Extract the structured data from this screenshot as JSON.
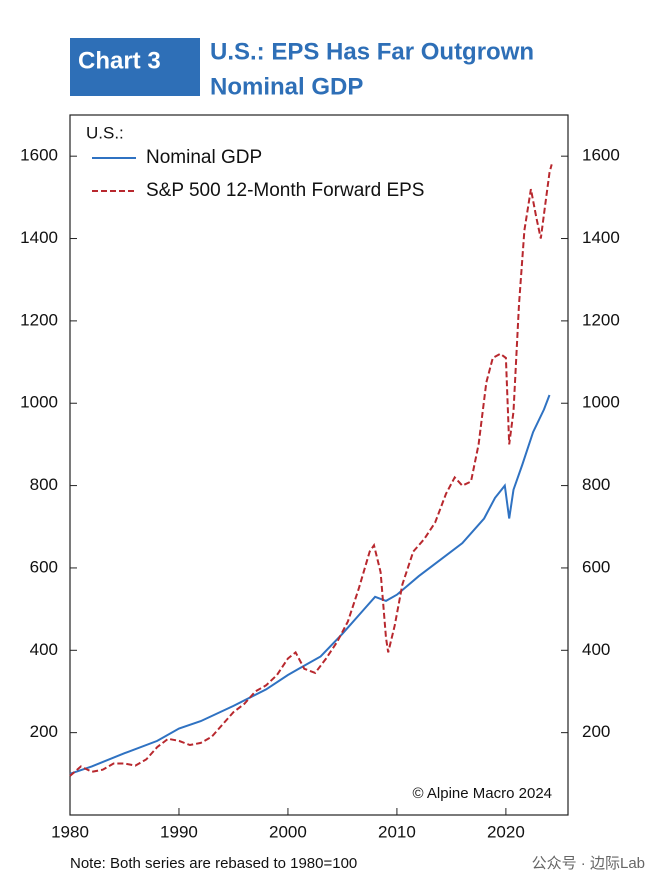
{
  "chart_data": {
    "type": "line",
    "label": "Chart 3",
    "title": [
      "U.S.: EPS Has Far Outgrown",
      "Nominal GDP"
    ],
    "legend_title": "U.S.:",
    "annotation": "© Alpine Macro 2024",
    "note": "Note: Both series are rebased to 1980=100",
    "watermark": "公众号 · 边际Lab",
    "xlim": [
      1980,
      2025.7
    ],
    "xticks": [
      1980,
      1990,
      2000,
      2010,
      2020
    ],
    "ylim": [
      0,
      1700
    ],
    "yticks": [
      200,
      400,
      600,
      800,
      1000,
      1200,
      1400,
      1600
    ],
    "y2lim": [
      0,
      1700
    ],
    "y2ticks": [
      200,
      400,
      600,
      800,
      1000,
      1200,
      1400,
      1600
    ],
    "legend": "upper left",
    "series": [
      {
        "name": "Nominal GDP",
        "color": "#2f72c2",
        "dash": false,
        "x": [
          1980,
          1982,
          1985,
          1988,
          1990,
          1992,
          1995,
          1998,
          2000,
          2001,
          2003,
          2005,
          2007,
          2008,
          2009,
          2010,
          2012,
          2014,
          2016,
          2018,
          2019,
          2019.9,
          2020.3,
          2020.7,
          2021.5,
          2022.5,
          2023.5,
          2024
        ],
        "values": [
          100,
          118,
          150,
          180,
          210,
          228,
          265,
          305,
          340,
          355,
          385,
          440,
          500,
          530,
          520,
          535,
          580,
          620,
          660,
          720,
          770,
          800,
          720,
          790,
          850,
          930,
          985,
          1020
        ]
      },
      {
        "name": "S&P 500 12-Month Forward EPS",
        "color": "#b8282e",
        "dash": true,
        "x": [
          1980,
          1981,
          1982,
          1983,
          1984,
          1985,
          1986,
          1987,
          1988,
          1989,
          1990,
          1991,
          1992,
          1993,
          1994,
          1995,
          1996,
          1997,
          1998,
          1999,
          2000,
          2000.7,
          2001.5,
          2002.5,
          2003.5,
          2004.5,
          2005.5,
          2006.5,
          2007.5,
          2007.9,
          2008.5,
          2009.0,
          2009.2,
          2009.8,
          2010.5,
          2011.5,
          2012.5,
          2013.5,
          2014.5,
          2015.3,
          2016,
          2016.8,
          2017.5,
          2018.2,
          2018.8,
          2019.5,
          2020.0,
          2020.3,
          2020.7,
          2021.2,
          2021.7,
          2022.3,
          2022.8,
          2023.2,
          2023.6,
          2024.0,
          2024.2
        ],
        "values": [
          95,
          118,
          105,
          110,
          125,
          125,
          120,
          135,
          165,
          185,
          180,
          170,
          175,
          190,
          220,
          250,
          270,
          300,
          315,
          340,
          380,
          395,
          355,
          345,
          380,
          420,
          470,
          550,
          640,
          655,
          590,
          430,
          395,
          460,
          560,
          640,
          670,
          710,
          780,
          820,
          800,
          810,
          900,
          1050,
          1110,
          1120,
          1110,
          900,
          980,
          1240,
          1420,
          1520,
          1450,
          1400,
          1480,
          1560,
          1580
        ]
      }
    ]
  }
}
